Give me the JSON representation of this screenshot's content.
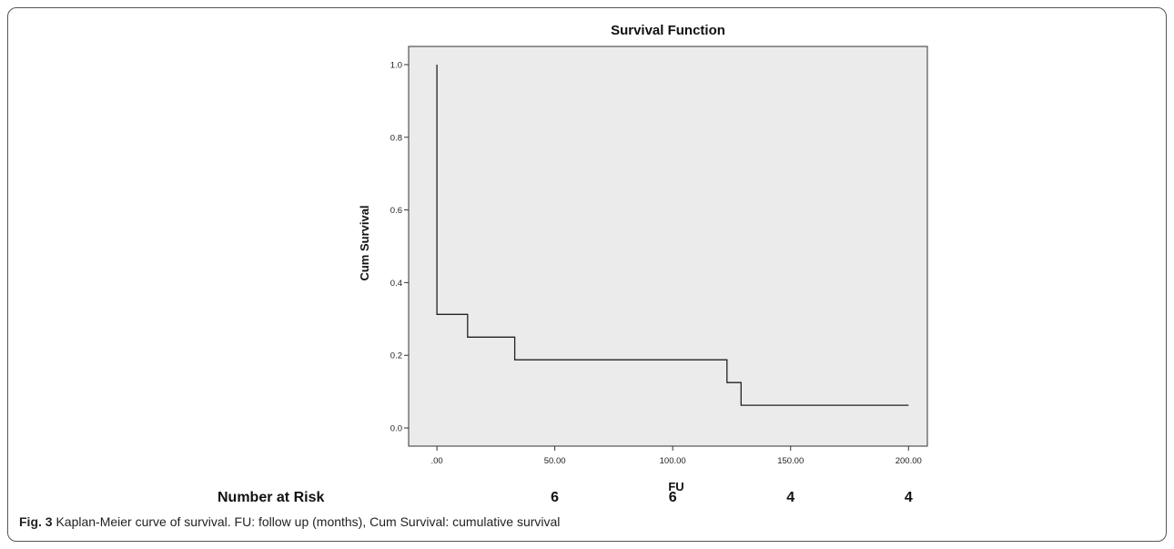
{
  "chart_data": {
    "type": "line",
    "style": "step",
    "title": "Survival Function",
    "xlabel": "FU",
    "ylabel": "Cum Survival",
    "xlim": [
      -12,
      208
    ],
    "ylim": [
      -0.05,
      1.05
    ],
    "xticks": [
      0,
      50,
      100,
      150,
      200
    ],
    "xtick_labels": [
      ".00",
      "50.00",
      "100.00",
      "150.00",
      "200.00"
    ],
    "yticks": [
      0.0,
      0.2,
      0.4,
      0.6,
      0.8,
      1.0
    ],
    "ytick_labels": [
      "0.0",
      "0.2",
      "0.4",
      "0.6",
      "0.8",
      "1.0"
    ],
    "grid": false,
    "background_color": "#ebebeb",
    "line_color": "#222222",
    "series": [
      {
        "x": [
          0,
          0,
          13,
          13,
          33,
          33,
          123,
          123,
          129,
          129,
          200
        ],
        "y": [
          1.0,
          0.3125,
          0.3125,
          0.25,
          0.25,
          0.1875,
          0.1875,
          0.125,
          0.125,
          0.0625,
          0.0625
        ]
      }
    ],
    "risk_table": {
      "label": "Number at Risk",
      "values": [
        "6",
        "6",
        "4",
        "4"
      ],
      "x_positions": [
        50,
        100,
        150,
        200
      ]
    }
  },
  "caption": {
    "figure_label": "Fig. 3",
    "text": " Kaplan-Meier curve of survival. FU: follow up (months), Cum Survival: cumulative survival"
  }
}
